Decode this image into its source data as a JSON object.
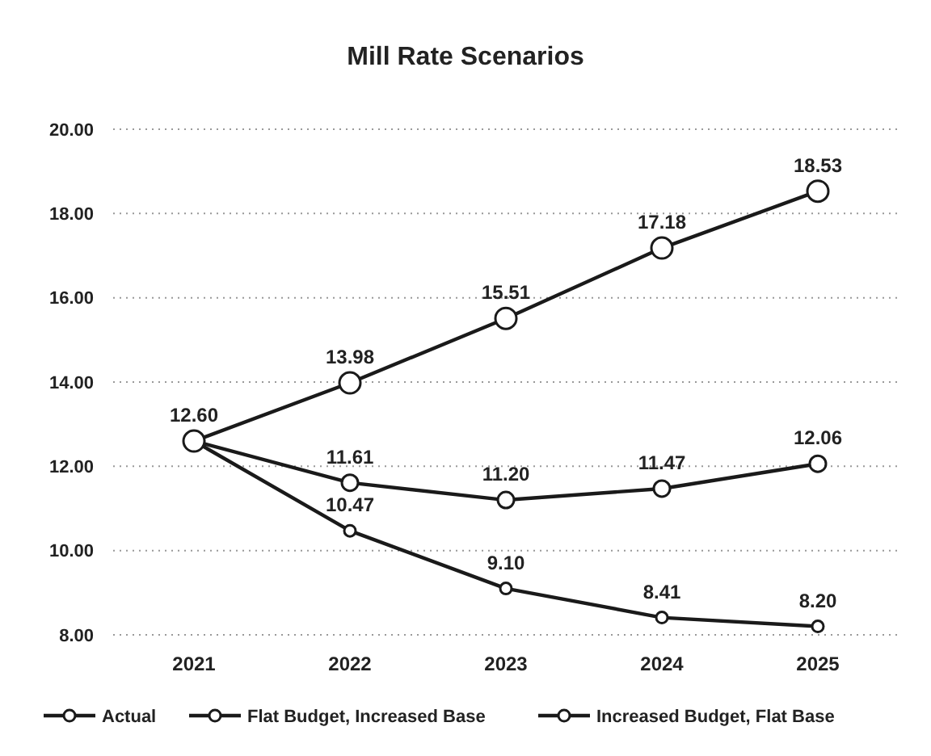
{
  "chart_data": {
    "type": "line",
    "title": "Mill Rate Scenarios",
    "categories": [
      "2021",
      "2022",
      "2023",
      "2024",
      "2025"
    ],
    "series": [
      {
        "name": "Actual",
        "color": "#1a1a1a",
        "values": [
          12.6,
          13.98,
          15.51,
          17.18,
          18.53
        ],
        "value_labels": [
          "12.60",
          "13.98",
          "15.51",
          "17.18",
          "18.53"
        ]
      },
      {
        "name": "Flat Budget, Increased Base",
        "color": "#1a1a1a",
        "values": [
          12.6,
          11.61,
          11.2,
          11.47,
          12.06
        ],
        "value_labels": [
          null,
          "11.61",
          "11.20",
          "11.47",
          "12.06"
        ]
      },
      {
        "name": "Increased Budget, Flat Base",
        "color": "#1a1a1a",
        "values": [
          12.6,
          10.47,
          9.1,
          8.41,
          8.2
        ],
        "value_labels": [
          null,
          "10.47",
          "9.10",
          "8.41",
          "8.20"
        ]
      }
    ],
    "ylim": [
      8,
      20
    ],
    "yticks": [
      {
        "value": 8,
        "label": "8.00"
      },
      {
        "value": 10,
        "label": "10.00"
      },
      {
        "value": 12,
        "label": "12.00"
      },
      {
        "value": 14,
        "label": "14.00"
      },
      {
        "value": 16,
        "label": "16.00"
      },
      {
        "value": 18,
        "label": "18.00"
      },
      {
        "value": 20,
        "label": "20.00"
      }
    ],
    "grid": "y",
    "legend": "bottom",
    "marker": "circle"
  }
}
